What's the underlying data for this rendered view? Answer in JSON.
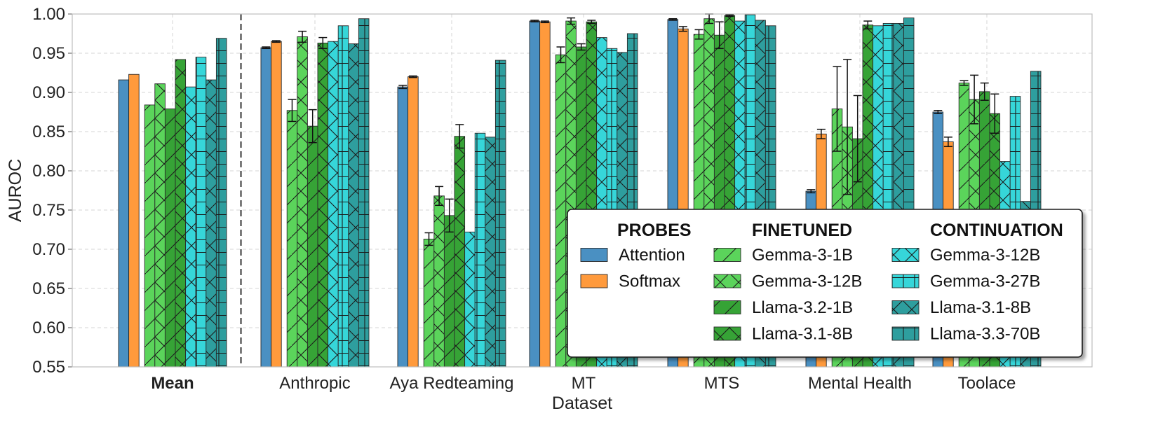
{
  "chart_data": {
    "type": "bar",
    "xlabel": "Dataset",
    "ylabel": "AUROC",
    "ylim": [
      0.55,
      1.0
    ],
    "yticks": [
      0.55,
      0.6,
      0.65,
      0.7,
      0.75,
      0.8,
      0.85,
      0.9,
      0.95,
      1.0
    ],
    "ytick_labels": [
      "0.55",
      "0.60",
      "0.65",
      "0.70",
      "0.75",
      "0.80",
      "0.85",
      "0.90",
      "0.95",
      "1.00"
    ],
    "grid": true,
    "separator_after_category": "Mean",
    "categories": [
      "Mean",
      "Anthropic",
      "Aya Redteaming",
      "MT",
      "MTS",
      "Mental Health",
      "Toolace"
    ],
    "bold_categories": [
      "Mean"
    ],
    "legend": {
      "placement": "lower-right",
      "groups": [
        {
          "title": "PROBES",
          "members": [
            "Attention",
            "Softmax"
          ]
        },
        {
          "title": "FINETUNED",
          "members": [
            "Gemma-3-1B",
            "Gemma-3-12B",
            "Llama-3.2-1B",
            "Llama-3.1-8B"
          ]
        },
        {
          "title": "CONTINUATION",
          "members": [
            "Gemma-3-12B",
            "Gemma-3-27B",
            "Llama-3.1-8B",
            "Llama-3.3-70B"
          ]
        }
      ]
    },
    "series": [
      {
        "name": "Attention",
        "group": "PROBES",
        "color": "#4a90c2",
        "hatch": "none",
        "values": [
          0.916,
          0.957,
          0.907,
          0.991,
          0.993,
          0.774,
          0.875
        ],
        "errors": [
          null,
          0.001,
          0.002,
          0.001,
          0.001,
          0.002,
          0.002
        ]
      },
      {
        "name": "Softmax",
        "group": "PROBES",
        "color": "#ff9a3c",
        "hatch": "none",
        "values": [
          0.923,
          0.965,
          0.92,
          0.99,
          0.981,
          0.847,
          0.837
        ],
        "errors": [
          null,
          0.001,
          0.001,
          0.001,
          0.003,
          0.006,
          0.006
        ]
      },
      {
        "name": "Gemma-3-1B",
        "group": "FINETUNED",
        "color": "#5bd45b",
        "hatch": "slash",
        "values": [
          0.884,
          0.877,
          0.713,
          0.948,
          0.974,
          0.879,
          0.912
        ],
        "errors": [
          null,
          0.014,
          0.008,
          0.01,
          0.006,
          0.054,
          0.003
        ]
      },
      {
        "name": "Gemma-3-12B",
        "group": "FINETUNED",
        "color": "#5bd45b",
        "hatch": "cross",
        "values": [
          0.911,
          0.971,
          0.768,
          0.991,
          0.994,
          0.856,
          0.891
        ],
        "errors": [
          null,
          0.007,
          0.012,
          0.004,
          0.006,
          0.086,
          0.031
        ]
      },
      {
        "name": "Llama-3.2-1B",
        "group": "FINETUNED",
        "color": "#36a336",
        "hatch": "slash",
        "values": [
          0.879,
          0.857,
          0.743,
          0.958,
          0.973,
          0.841,
          0.901
        ],
        "errors": [
          null,
          0.021,
          0.021,
          0.004,
          0.017,
          0.055,
          0.011
        ]
      },
      {
        "name": "Llama-3.1-8B",
        "group": "FINETUNED",
        "color": "#36a336",
        "hatch": "cross",
        "values": [
          0.942,
          0.963,
          0.844,
          0.99,
          0.998,
          0.986,
          0.873
        ],
        "errors": [
          null,
          0.007,
          0.015,
          0.002,
          0.001,
          0.005,
          0.025
        ]
      },
      {
        "name": "Gemma-3-12B",
        "group": "CONTINUATION",
        "color": "#36d6d9",
        "hatch": "cross",
        "values": [
          0.907,
          0.965,
          0.722,
          0.97,
          0.991,
          0.985,
          0.812
        ],
        "errors": [
          null,
          null,
          null,
          null,
          null,
          null,
          null
        ]
      },
      {
        "name": "Gemma-3-27B",
        "group": "CONTINUATION",
        "color": "#36d6d9",
        "hatch": "grid",
        "values": [
          0.945,
          0.985,
          0.848,
          0.956,
          0.999,
          0.988,
          0.895
        ],
        "errors": [
          null,
          null,
          null,
          null,
          null,
          null,
          null
        ]
      },
      {
        "name": "Llama-3.1-8B",
        "group": "CONTINUATION",
        "color": "#2e9e9e",
        "hatch": "cross",
        "values": [
          0.916,
          0.962,
          0.843,
          0.951,
          0.992,
          0.988,
          0.761
        ],
        "errors": [
          null,
          null,
          null,
          null,
          null,
          null,
          null
        ]
      },
      {
        "name": "Llama-3.3-70B",
        "group": "CONTINUATION",
        "color": "#2e9e9e",
        "hatch": "grid",
        "values": [
          0.969,
          0.994,
          0.941,
          0.975,
          0.985,
          0.995,
          0.927
        ],
        "errors": [
          null,
          null,
          null,
          null,
          null,
          null,
          null
        ]
      }
    ]
  }
}
